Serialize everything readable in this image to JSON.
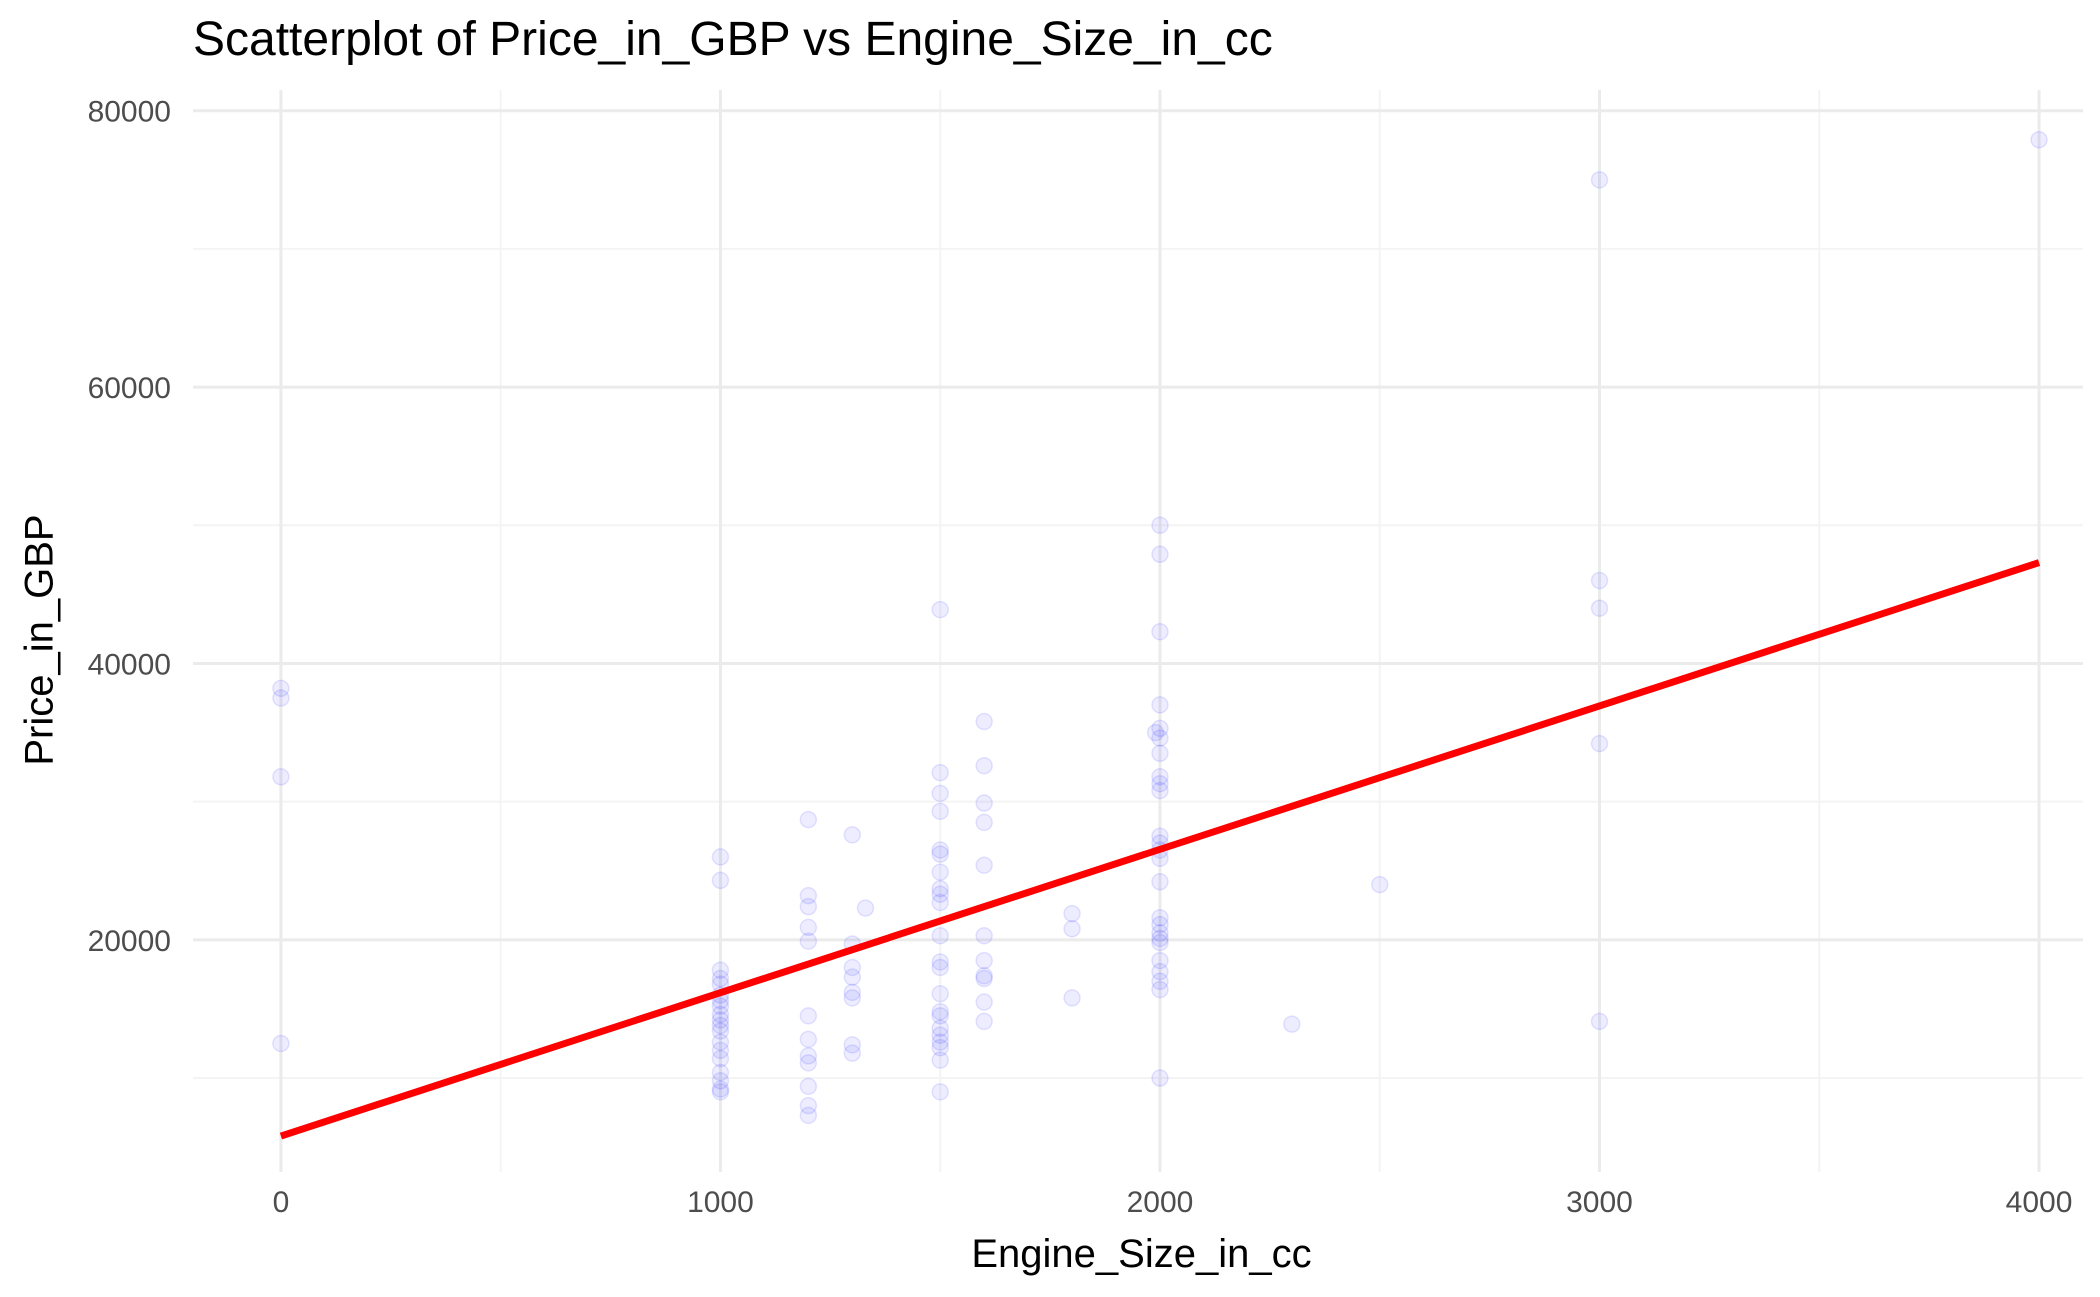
{
  "chart_data": {
    "type": "scatter",
    "title": "Scatterplot of Price_in_GBP vs Engine_Size_in_cc",
    "xlabel": "Engine_Size_in_cc",
    "ylabel": "Price_in_GBP",
    "xlim": [
      -200,
      4100
    ],
    "ylim": [
      3200,
      81500
    ],
    "x_ticks": [
      0,
      1000,
      2000,
      3000,
      4000
    ],
    "x_tick_labels": [
      "0",
      "1000",
      "2000",
      "3000",
      "4000"
    ],
    "y_ticks": [
      20000,
      40000,
      60000,
      80000
    ],
    "y_tick_labels": [
      "20000",
      "40000",
      "60000",
      "80000"
    ],
    "x_minor_ticks": [
      500,
      1500,
      2500,
      3500
    ],
    "y_minor_ticks": [
      10000,
      30000,
      50000,
      70000
    ],
    "grid": true,
    "colors": {
      "points": "#0000ff",
      "trend": "#ff0000",
      "grid_major": "#ebebeb",
      "grid_minor": "#f4f4f4",
      "axis_text": "#4d4d4d"
    },
    "points": [
      {
        "x": 0,
        "y": 38200
      },
      {
        "x": 0,
        "y": 37500
      },
      {
        "x": 0,
        "y": 31800
      },
      {
        "x": 0,
        "y": 12500
      },
      {
        "x": 1000,
        "y": 26000
      },
      {
        "x": 1000,
        "y": 24300
      },
      {
        "x": 1000,
        "y": 17800
      },
      {
        "x": 1000,
        "y": 17200
      },
      {
        "x": 1000,
        "y": 16800
      },
      {
        "x": 1000,
        "y": 16000
      },
      {
        "x": 1000,
        "y": 15600
      },
      {
        "x": 1000,
        "y": 15200
      },
      {
        "x": 1000,
        "y": 14600
      },
      {
        "x": 1000,
        "y": 14200
      },
      {
        "x": 1000,
        "y": 13800
      },
      {
        "x": 1000,
        "y": 13400
      },
      {
        "x": 1000,
        "y": 12600
      },
      {
        "x": 1000,
        "y": 12000
      },
      {
        "x": 1000,
        "y": 11400
      },
      {
        "x": 1000,
        "y": 10400
      },
      {
        "x": 1000,
        "y": 9800
      },
      {
        "x": 1000,
        "y": 9200
      },
      {
        "x": 1000,
        "y": 9000
      },
      {
        "x": 1200,
        "y": 28700
      },
      {
        "x": 1200,
        "y": 23200
      },
      {
        "x": 1200,
        "y": 22400
      },
      {
        "x": 1200,
        "y": 20900
      },
      {
        "x": 1200,
        "y": 19900
      },
      {
        "x": 1200,
        "y": 14500
      },
      {
        "x": 1200,
        "y": 12800
      },
      {
        "x": 1200,
        "y": 11600
      },
      {
        "x": 1200,
        "y": 11100
      },
      {
        "x": 1200,
        "y": 9400
      },
      {
        "x": 1200,
        "y": 8000
      },
      {
        "x": 1200,
        "y": 7300
      },
      {
        "x": 1300,
        "y": 27600
      },
      {
        "x": 1300,
        "y": 19700
      },
      {
        "x": 1300,
        "y": 18000
      },
      {
        "x": 1300,
        "y": 17300
      },
      {
        "x": 1300,
        "y": 16200
      },
      {
        "x": 1300,
        "y": 15800
      },
      {
        "x": 1300,
        "y": 12400
      },
      {
        "x": 1300,
        "y": 11800
      },
      {
        "x": 1330,
        "y": 22300
      },
      {
        "x": 1500,
        "y": 43900
      },
      {
        "x": 1500,
        "y": 32100
      },
      {
        "x": 1500,
        "y": 30600
      },
      {
        "x": 1500,
        "y": 29300
      },
      {
        "x": 1500,
        "y": 26500
      },
      {
        "x": 1500,
        "y": 26200
      },
      {
        "x": 1500,
        "y": 24900
      },
      {
        "x": 1500,
        "y": 23700
      },
      {
        "x": 1500,
        "y": 23300
      },
      {
        "x": 1500,
        "y": 22700
      },
      {
        "x": 1500,
        "y": 20300
      },
      {
        "x": 1500,
        "y": 18400
      },
      {
        "x": 1500,
        "y": 18000
      },
      {
        "x": 1500,
        "y": 16100
      },
      {
        "x": 1500,
        "y": 14800
      },
      {
        "x": 1500,
        "y": 14500
      },
      {
        "x": 1500,
        "y": 13600
      },
      {
        "x": 1500,
        "y": 13100
      },
      {
        "x": 1500,
        "y": 12600
      },
      {
        "x": 1500,
        "y": 12200
      },
      {
        "x": 1500,
        "y": 11300
      },
      {
        "x": 1500,
        "y": 9000
      },
      {
        "x": 1600,
        "y": 35800
      },
      {
        "x": 1600,
        "y": 32600
      },
      {
        "x": 1600,
        "y": 29900
      },
      {
        "x": 1600,
        "y": 28500
      },
      {
        "x": 1600,
        "y": 25400
      },
      {
        "x": 1600,
        "y": 20300
      },
      {
        "x": 1600,
        "y": 18500
      },
      {
        "x": 1600,
        "y": 17400
      },
      {
        "x": 1600,
        "y": 17200
      },
      {
        "x": 1600,
        "y": 15500
      },
      {
        "x": 1600,
        "y": 14100
      },
      {
        "x": 1800,
        "y": 21900
      },
      {
        "x": 1800,
        "y": 20800
      },
      {
        "x": 1800,
        "y": 15800
      },
      {
        "x": 1990,
        "y": 35000
      },
      {
        "x": 2000,
        "y": 50000
      },
      {
        "x": 2000,
        "y": 47900
      },
      {
        "x": 2000,
        "y": 42300
      },
      {
        "x": 2000,
        "y": 37000
      },
      {
        "x": 2000,
        "y": 35300
      },
      {
        "x": 2000,
        "y": 34600
      },
      {
        "x": 2000,
        "y": 33500
      },
      {
        "x": 2000,
        "y": 31800
      },
      {
        "x": 2000,
        "y": 31300
      },
      {
        "x": 2000,
        "y": 30800
      },
      {
        "x": 2000,
        "y": 27500
      },
      {
        "x": 2000,
        "y": 27000
      },
      {
        "x": 2000,
        "y": 26500
      },
      {
        "x": 2000,
        "y": 25900
      },
      {
        "x": 2000,
        "y": 24200
      },
      {
        "x": 2000,
        "y": 21600
      },
      {
        "x": 2000,
        "y": 21100
      },
      {
        "x": 2000,
        "y": 20500
      },
      {
        "x": 2000,
        "y": 20100
      },
      {
        "x": 2000,
        "y": 19800
      },
      {
        "x": 2000,
        "y": 18500
      },
      {
        "x": 2000,
        "y": 17700
      },
      {
        "x": 2000,
        "y": 17000
      },
      {
        "x": 2000,
        "y": 16400
      },
      {
        "x": 2000,
        "y": 10000
      },
      {
        "x": 2300,
        "y": 13900
      },
      {
        "x": 2500,
        "y": 24000
      },
      {
        "x": 3000,
        "y": 75000
      },
      {
        "x": 3000,
        "y": 46000
      },
      {
        "x": 3000,
        "y": 44000
      },
      {
        "x": 3000,
        "y": 34200
      },
      {
        "x": 3000,
        "y": 14100
      },
      {
        "x": 4000,
        "y": 77900
      }
    ],
    "trend_line": {
      "x": [
        0,
        4000
      ],
      "y": [
        5800,
        47300
      ]
    }
  }
}
